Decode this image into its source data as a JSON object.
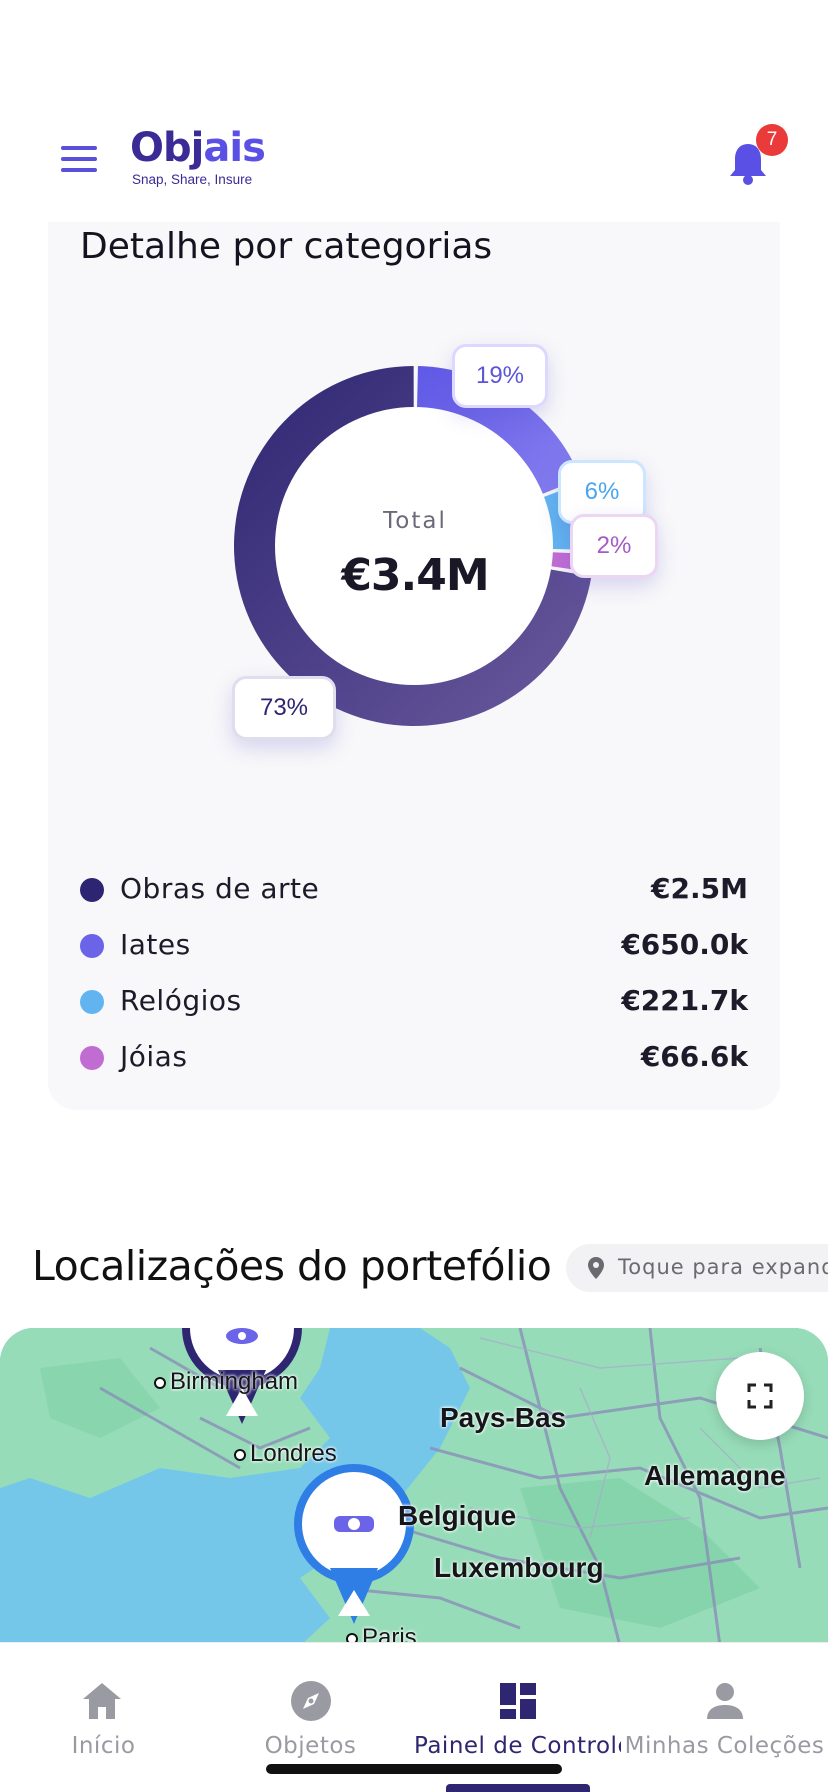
{
  "header": {
    "logo_text_a": "O",
    "logo_text_b": "bj",
    "logo_text_c": "ais",
    "logo_tagline": "Snap, Share, Insure",
    "notification_count": "7"
  },
  "categories": {
    "title": "Detalhe por categorias",
    "total_label": "Total",
    "total_value": "€3.4M",
    "items": [
      {
        "name": "Obras de arte",
        "value": "€2.5M",
        "percent_label": "73%",
        "share": 0.73,
        "color": "#2d2472"
      },
      {
        "name": "Iates",
        "value": "€650.0k",
        "percent_label": "19%",
        "share": 0.19,
        "color": "#6b63e8"
      },
      {
        "name": "Relógios",
        "value": "€221.7k",
        "percent_label": "6%",
        "share": 0.065,
        "color": "#62b4f0"
      },
      {
        "name": "Jóias",
        "value": "€66.6k",
        "percent_label": "2%",
        "share": 0.02,
        "color": "#c06cd3"
      }
    ]
  },
  "locations": {
    "title": "Localizações do portefólio",
    "chip_text": "Toque para expandir",
    "map_labels": {
      "birmingham": "Birmingham",
      "londres": "Londres",
      "pays_bas": "Pays-Bas",
      "allemagne": "Allemagne",
      "belgique": "Belgique",
      "luxembourg": "Luxembourg",
      "paris": "Paris"
    }
  },
  "bottom_nav": {
    "items": [
      {
        "label": "Início",
        "icon": "home-icon"
      },
      {
        "label": "Objetos",
        "icon": "compass-icon"
      },
      {
        "label": "Painel de Controlo",
        "icon": "dashboard-icon",
        "active": true
      },
      {
        "label": "Minhas Coleções",
        "icon": "person-icon"
      }
    ]
  },
  "colors": {
    "accent": "#5b50e6",
    "brand_dark": "#2e2670",
    "badge": "#ea3a3a"
  }
}
